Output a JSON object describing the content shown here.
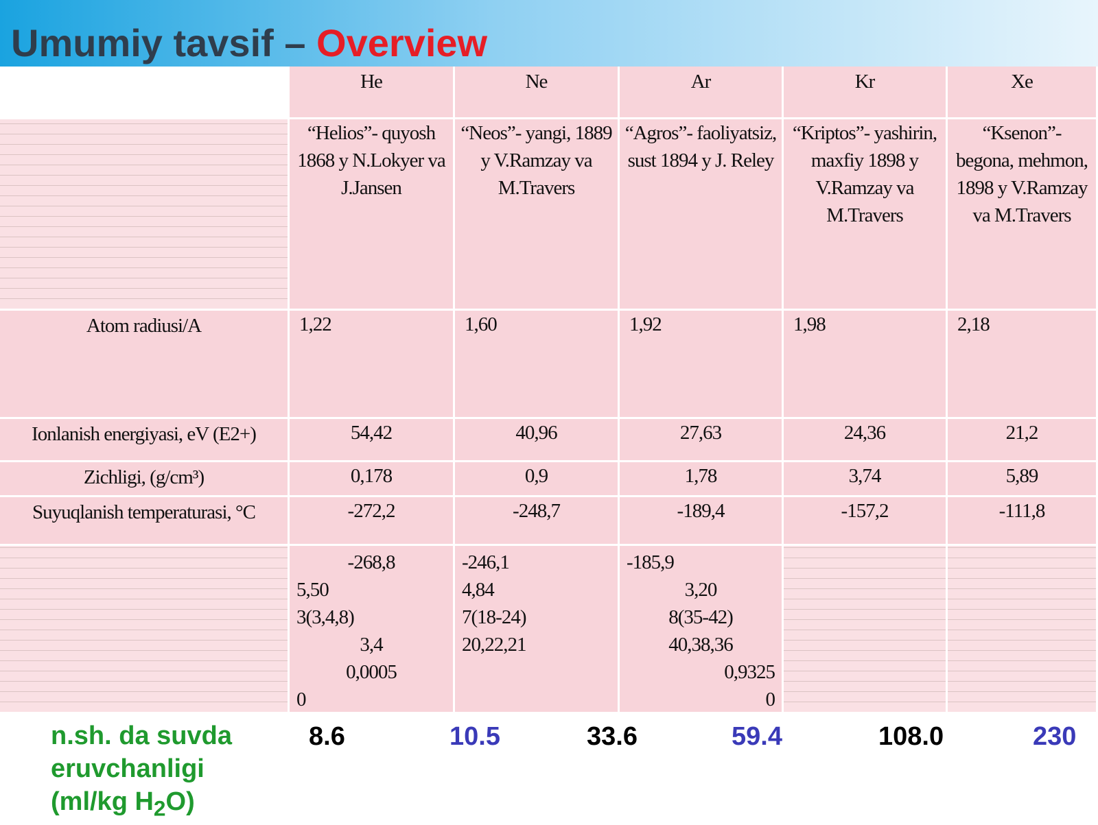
{
  "header": {
    "title_main": "Umumiy tavsif – ",
    "title_accent": "Overview"
  },
  "table": {
    "columns": [
      "He",
      "Ne",
      "Ar",
      "Kr",
      "Xe"
    ],
    "discovery": [
      "“Helios”- quyosh 1868 y N.Lokyer va J.Jansen",
      "“Neos”- yangi, 1889 y V.Ramzay va M.Travers",
      "“Agros”- faoliyatsiz, sust 1894 y J. Releу",
      "“Kriptos”- yashirin, maxfiy 1898 y V.Ramzay va M.Travers",
      "“Ksenon”- begona, mehmon, 1898 y V.Ramzay va M.Travers"
    ],
    "rows": [
      {
        "label": "Atom radiusi/A",
        "values": [
          "1,22",
          "1,60",
          "1,92",
          "1,98",
          "2,18"
        ]
      },
      {
        "label": "Ionlanish energiyasi, eV (E2+)",
        "values": [
          "54,42",
          "40,96",
          "27,63",
          "24,36",
          "21,2"
        ]
      },
      {
        "label": "Zichligi, (g/cm³)",
        "values": [
          "0,178",
          "0,9",
          "1,78",
          "3,74",
          "5,89"
        ]
      },
      {
        "label": "Suyuqlanish temperaturasi, °C",
        "values": [
          "-272,2",
          "-248,7",
          "-189,4",
          "-157,2",
          "-111,8"
        ]
      }
    ],
    "bottom": [
      [
        "-268,8",
        "5,50",
        "3(3,4,8)",
        "3,4",
        "0,0005",
        "0"
      ],
      [
        "-246,1",
        "4,84",
        "7(18-24)",
        "20,22,21"
      ],
      [
        "-185,9",
        "3,20",
        "8(35-42)",
        "40,38,36",
        "0,9325",
        "0"
      ]
    ]
  },
  "solubility": {
    "label_main": "n.sh. da suvda eruvchanligi (ml/kg H",
    "label_sub": "2",
    "label_end": "O)",
    "values": [
      "8.6",
      "10.5",
      "33.6",
      "59.4",
      "108.0",
      "230"
    ]
  }
}
